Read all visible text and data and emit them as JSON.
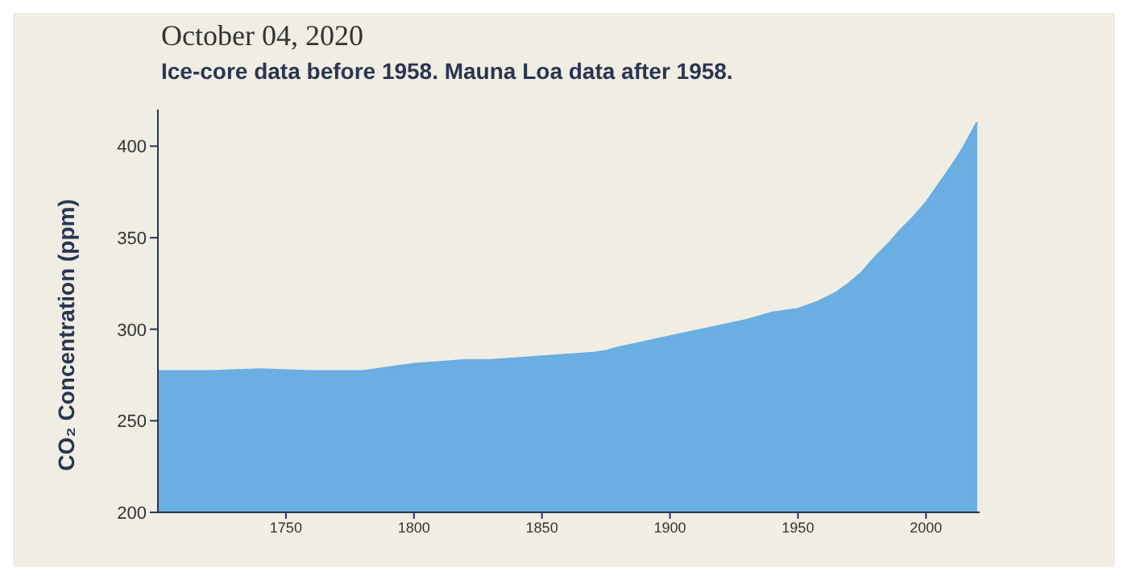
{
  "chart_data": {
    "type": "area",
    "title": "October 04, 2020",
    "subtitle": "Ice-core data before 1958. Mauna Loa data after 1958.",
    "ylabel": "CO₂ Concentration (ppm)",
    "x": [
      1700,
      1720,
      1740,
      1760,
      1780,
      1790,
      1800,
      1810,
      1820,
      1830,
      1840,
      1850,
      1860,
      1870,
      1875,
      1880,
      1890,
      1900,
      1910,
      1920,
      1930,
      1940,
      1945,
      1950,
      1958,
      1965,
      1970,
      1975,
      1980,
      1985,
      1990,
      1995,
      2000,
      2005,
      2010,
      2015,
      2020
    ],
    "series": [
      {
        "color": "#6aaee2",
        "values": [
          277,
          277,
          278,
          277,
          277,
          279,
          281,
          282,
          283,
          283,
          284,
          285,
          286,
          287,
          288,
          290,
          293,
          296,
          299,
          302,
          305,
          309,
          310,
          311,
          315,
          320,
          325,
          331,
          339,
          346,
          354,
          361,
          369,
          379,
          389,
          400,
          413
        ]
      }
    ],
    "xlim": [
      1700,
      2021
    ],
    "xticks": [
      1750,
      1800,
      1850,
      1900,
      1950,
      2000
    ],
    "ylim": [
      200,
      420
    ],
    "yticks": [
      200,
      250,
      300,
      350,
      400
    ]
  }
}
